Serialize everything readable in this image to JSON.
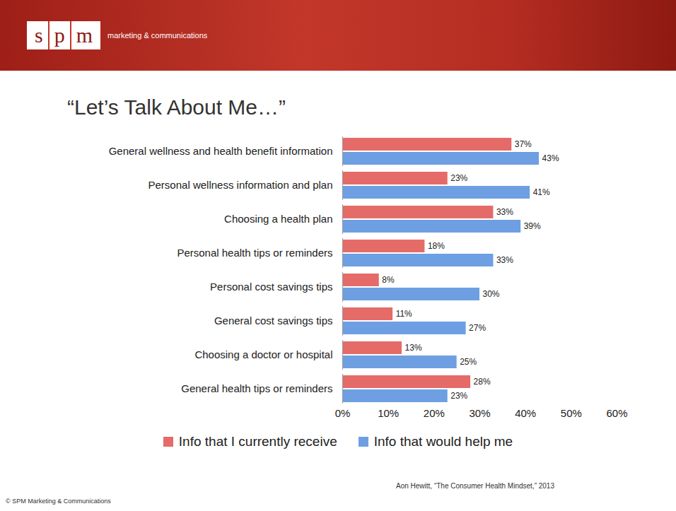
{
  "chart_data": {
    "type": "bar",
    "orientation": "horizontal",
    "header": {
      "logo": "spm",
      "tagline": "marketing & communications"
    },
    "title": "“Let’s Talk About Me…”",
    "categories": [
      "General wellness and health benefit information",
      "Personal wellness information and plan",
      "Choosing a health plan",
      "Personal health tips or reminders",
      "Personal cost savings tips",
      "General cost savings tips",
      "Choosing a doctor or hospital",
      "General health tips or reminders"
    ],
    "series": [
      {
        "name": "Info that I currently receive",
        "color": "#e56b69",
        "values": [
          37,
          23,
          33,
          18,
          8,
          11,
          13,
          28
        ],
        "value_labels": [
          "37%",
          "23%",
          "33%",
          "18%",
          "8%",
          "11%",
          "13%",
          "28%"
        ]
      },
      {
        "name": "Info that would help me",
        "color": "#6d9fe2",
        "values": [
          43,
          41,
          39,
          33,
          30,
          27,
          25,
          23
        ],
        "value_labels": [
          "43%",
          "41%",
          "39%",
          "33%",
          "30%",
          "27%",
          "25%",
          "23%"
        ]
      }
    ],
    "xlim": [
      0,
      60
    ],
    "xticks": [
      {
        "value": 0,
        "label": "0%"
      },
      {
        "value": 10,
        "label": "10%"
      },
      {
        "value": 20,
        "label": "20%"
      },
      {
        "value": 30,
        "label": "30%"
      },
      {
        "value": 40,
        "label": "40%"
      },
      {
        "value": 50,
        "label": "50%"
      },
      {
        "value": 60,
        "label": "60%"
      }
    ],
    "grid": false,
    "data_labels": true,
    "legend": "bottom",
    "source": "Aon Hewitt, “The Consumer Health Mindset,” 2013",
    "copyright": "© SPM Marketing & Communications"
  }
}
